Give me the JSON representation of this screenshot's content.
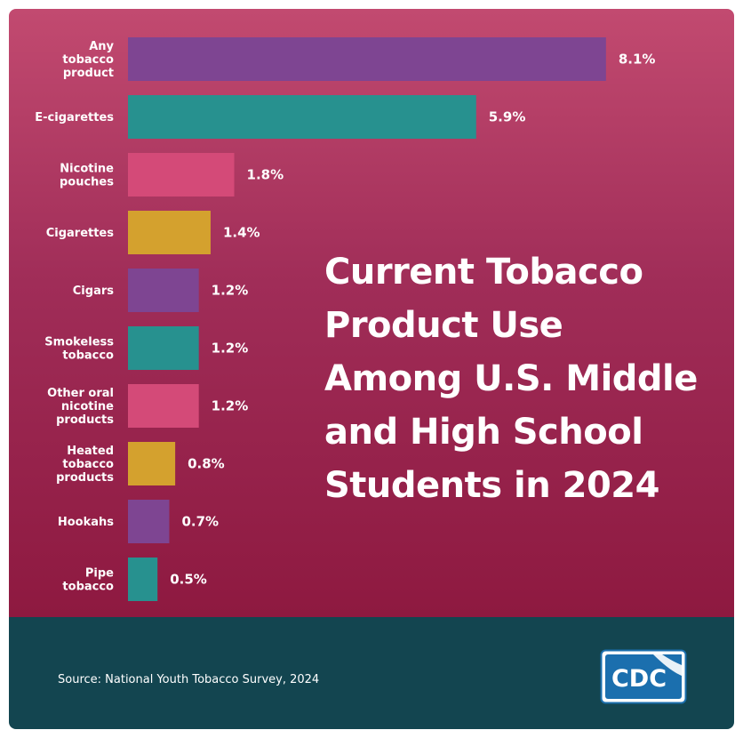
{
  "chart_data": {
    "type": "bar",
    "orientation": "horizontal",
    "title": "Current Tobacco\nProduct Use\nAmong U.S. Middle\nand High School\nStudents in 2024",
    "categories": [
      "Any tobacco product",
      "E-cigarettes",
      "Nicotine pouches",
      "Cigarettes",
      "Cigars",
      "Smokeless tobacco",
      "Other oral nicotine products",
      "Heated tobacco products",
      "Hookahs",
      "Pipe tobacco"
    ],
    "category_lines": [
      [
        "Any",
        "tobacco",
        "product"
      ],
      [
        "E-cigarettes"
      ],
      [
        "Nicotine",
        "pouches"
      ],
      [
        "Cigarettes"
      ],
      [
        "Cigars"
      ],
      [
        "Smokeless",
        "tobacco"
      ],
      [
        "Other oral",
        "nicotine",
        "products"
      ],
      [
        "Heated",
        "tobacco",
        "products"
      ],
      [
        "Hookahs"
      ],
      [
        "Pipe",
        "tobacco"
      ]
    ],
    "values": [
      8.1,
      5.9,
      1.8,
      1.4,
      1.2,
      1.2,
      1.2,
      0.8,
      0.7,
      0.5
    ],
    "value_labels": [
      "8.1%",
      "5.9%",
      "1.8%",
      "1.4%",
      "1.2%",
      "1.2%",
      "1.2%",
      "0.8%",
      "0.7%",
      "0.5%"
    ],
    "unit": "%",
    "bar_colors": [
      "#7e4592",
      "#27918f",
      "#d44a78",
      "#d4a12e",
      "#7e4592",
      "#27918f",
      "#d44a78",
      "#d4a12e",
      "#7e4592",
      "#27918f"
    ],
    "grid": false,
    "legend": "none"
  },
  "footer": {
    "source": "Source: National Youth Tobacco Survey, 2024",
    "logo_text": "CDC"
  },
  "colors": {
    "panel_top": "#c24a70",
    "panel_bottom": "#8e1940",
    "footer": "#134550",
    "text": "#ffffff"
  }
}
